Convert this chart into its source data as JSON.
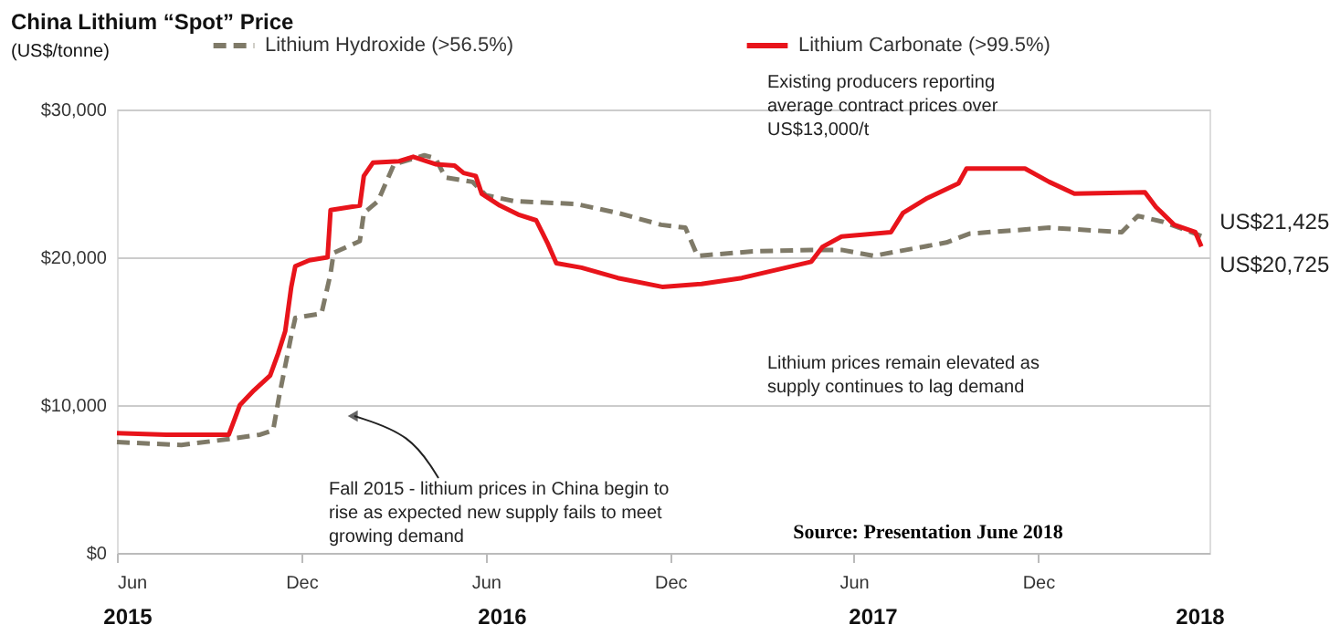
{
  "chart_data": {
    "type": "line",
    "title": "China Lithium “Spot” Price",
    "subtitle": "(US$/tonne)",
    "xlim": [
      "2015-06-01",
      "2018-05-20"
    ],
    "xticks": [
      {
        "value": "2015-06-01",
        "label": "Jun"
      },
      {
        "value": "2015-12-01",
        "label": "Dec"
      },
      {
        "value": "2016-06-01",
        "label": "Jun"
      },
      {
        "value": "2016-12-01",
        "label": "Dec"
      },
      {
        "value": "2017-06-01",
        "label": "Jun"
      },
      {
        "value": "2017-12-01",
        "label": "Dec"
      }
    ],
    "ylim": [
      0,
      30000
    ],
    "yticks": [
      {
        "value": 0,
        "label": "$0"
      },
      {
        "value": 10000,
        "label": "$10,000"
      },
      {
        "value": 20000,
        "label": "$20,000"
      },
      {
        "value": 30000,
        "label": "$30,000"
      }
    ],
    "grid": "y",
    "legend": "top",
    "line_style": "solid",
    "series": [
      {
        "name": "Lithium Hydroxide (>56.5%)",
        "color": "#7f7a68",
        "line_style": "dashed",
        "x": [
          "2015-06-01",
          "2015-08-04",
          "2015-09-20",
          "2015-10-21",
          "2015-11-03",
          "2015-11-09",
          "2015-11-21",
          "2015-11-25",
          "2015-12-21",
          "2015-12-30",
          "2016-01-02",
          "2016-01-28",
          "2016-02-01",
          "2016-02-15",
          "2016-03-02",
          "2016-04-01",
          "2016-04-12",
          "2016-04-22",
          "2016-05-19",
          "2016-06-01",
          "2016-06-29",
          "2016-08-30",
          "2016-10-10",
          "2016-11-22",
          "2016-12-16",
          "2016-12-28",
          "2017-02-21",
          "2017-04-20",
          "2017-05-20",
          "2017-06-21",
          "2017-09-01",
          "2017-09-24",
          "2017-12-12",
          "2018-02-22",
          "2018-03-10",
          "2018-04-04",
          "2018-05-06",
          "2018-05-12"
        ],
        "values": [
          7500,
          7300,
          7700,
          8000,
          8300,
          10600,
          14700,
          15900,
          16200,
          18900,
          20300,
          21100,
          23000,
          23800,
          26300,
          26900,
          26700,
          25400,
          25100,
          24200,
          23800,
          23600,
          23000,
          22200,
          22000,
          20100,
          20400,
          20500,
          20500,
          20100,
          21000,
          21600,
          22000,
          21700,
          22800,
          22400,
          21600,
          21425
        ]
      },
      {
        "name": "Lithium Carbonate (>99.5%)",
        "color": "#e8141b",
        "x": [
          "2015-06-01",
          "2015-07-20",
          "2015-09-20",
          "2015-10-01",
          "2015-10-15",
          "2015-10-31",
          "2015-11-08",
          "2015-11-15",
          "2015-11-21",
          "2015-11-25",
          "2015-12-09",
          "2015-12-27",
          "2015-12-30",
          "2016-01-28",
          "2016-02-01",
          "2016-02-10",
          "2016-03-07",
          "2016-03-21",
          "2016-04-12",
          "2016-05-01",
          "2016-05-10",
          "2016-05-22",
          "2016-05-28",
          "2016-06-15",
          "2016-07-03",
          "2016-07-21",
          "2016-08-01",
          "2016-08-10",
          "2016-09-04",
          "2016-10-10",
          "2016-11-23",
          "2017-01-01",
          "2017-02-10",
          "2017-04-20",
          "2017-05-01",
          "2017-05-20",
          "2017-07-08",
          "2017-07-20",
          "2017-08-13",
          "2017-09-13",
          "2017-09-21",
          "2017-11-18",
          "2017-12-12",
          "2018-01-06",
          "2018-03-17",
          "2018-03-28",
          "2018-04-15",
          "2018-05-06",
          "2018-05-12"
        ],
        "values": [
          8100,
          8000,
          8000,
          10000,
          11000,
          12000,
          13500,
          15000,
          18000,
          19400,
          19800,
          20000,
          23200,
          23500,
          25500,
          26400,
          26500,
          26800,
          26300,
          26200,
          25700,
          25500,
          24300,
          23500,
          22900,
          22500,
          21000,
          19600,
          19300,
          18600,
          18000,
          18200,
          18600,
          19700,
          20700,
          21400,
          21700,
          23000,
          24000,
          25000,
          26000,
          26000,
          25100,
          24300,
          24400,
          23400,
          22200,
          21700,
          20725
        ]
      }
    ],
    "annotations": [
      "Existing producers reporting average contract prices over US$13,000/t",
      "Fall 2015 - lithium prices in China begin to rise as expected new supply fails to meet growing demand",
      "Lithium prices remain elevated as supply continues to lag demand",
      "Source: Presentation June 2018",
      {
        "text": "US$21,425",
        "x": "2018-05-12",
        "y": 21425
      },
      {
        "text": "US$20,725",
        "x": "2018-05-12",
        "y": 20725
      },
      "2015",
      "2016",
      "2017",
      "2018"
    ]
  }
}
